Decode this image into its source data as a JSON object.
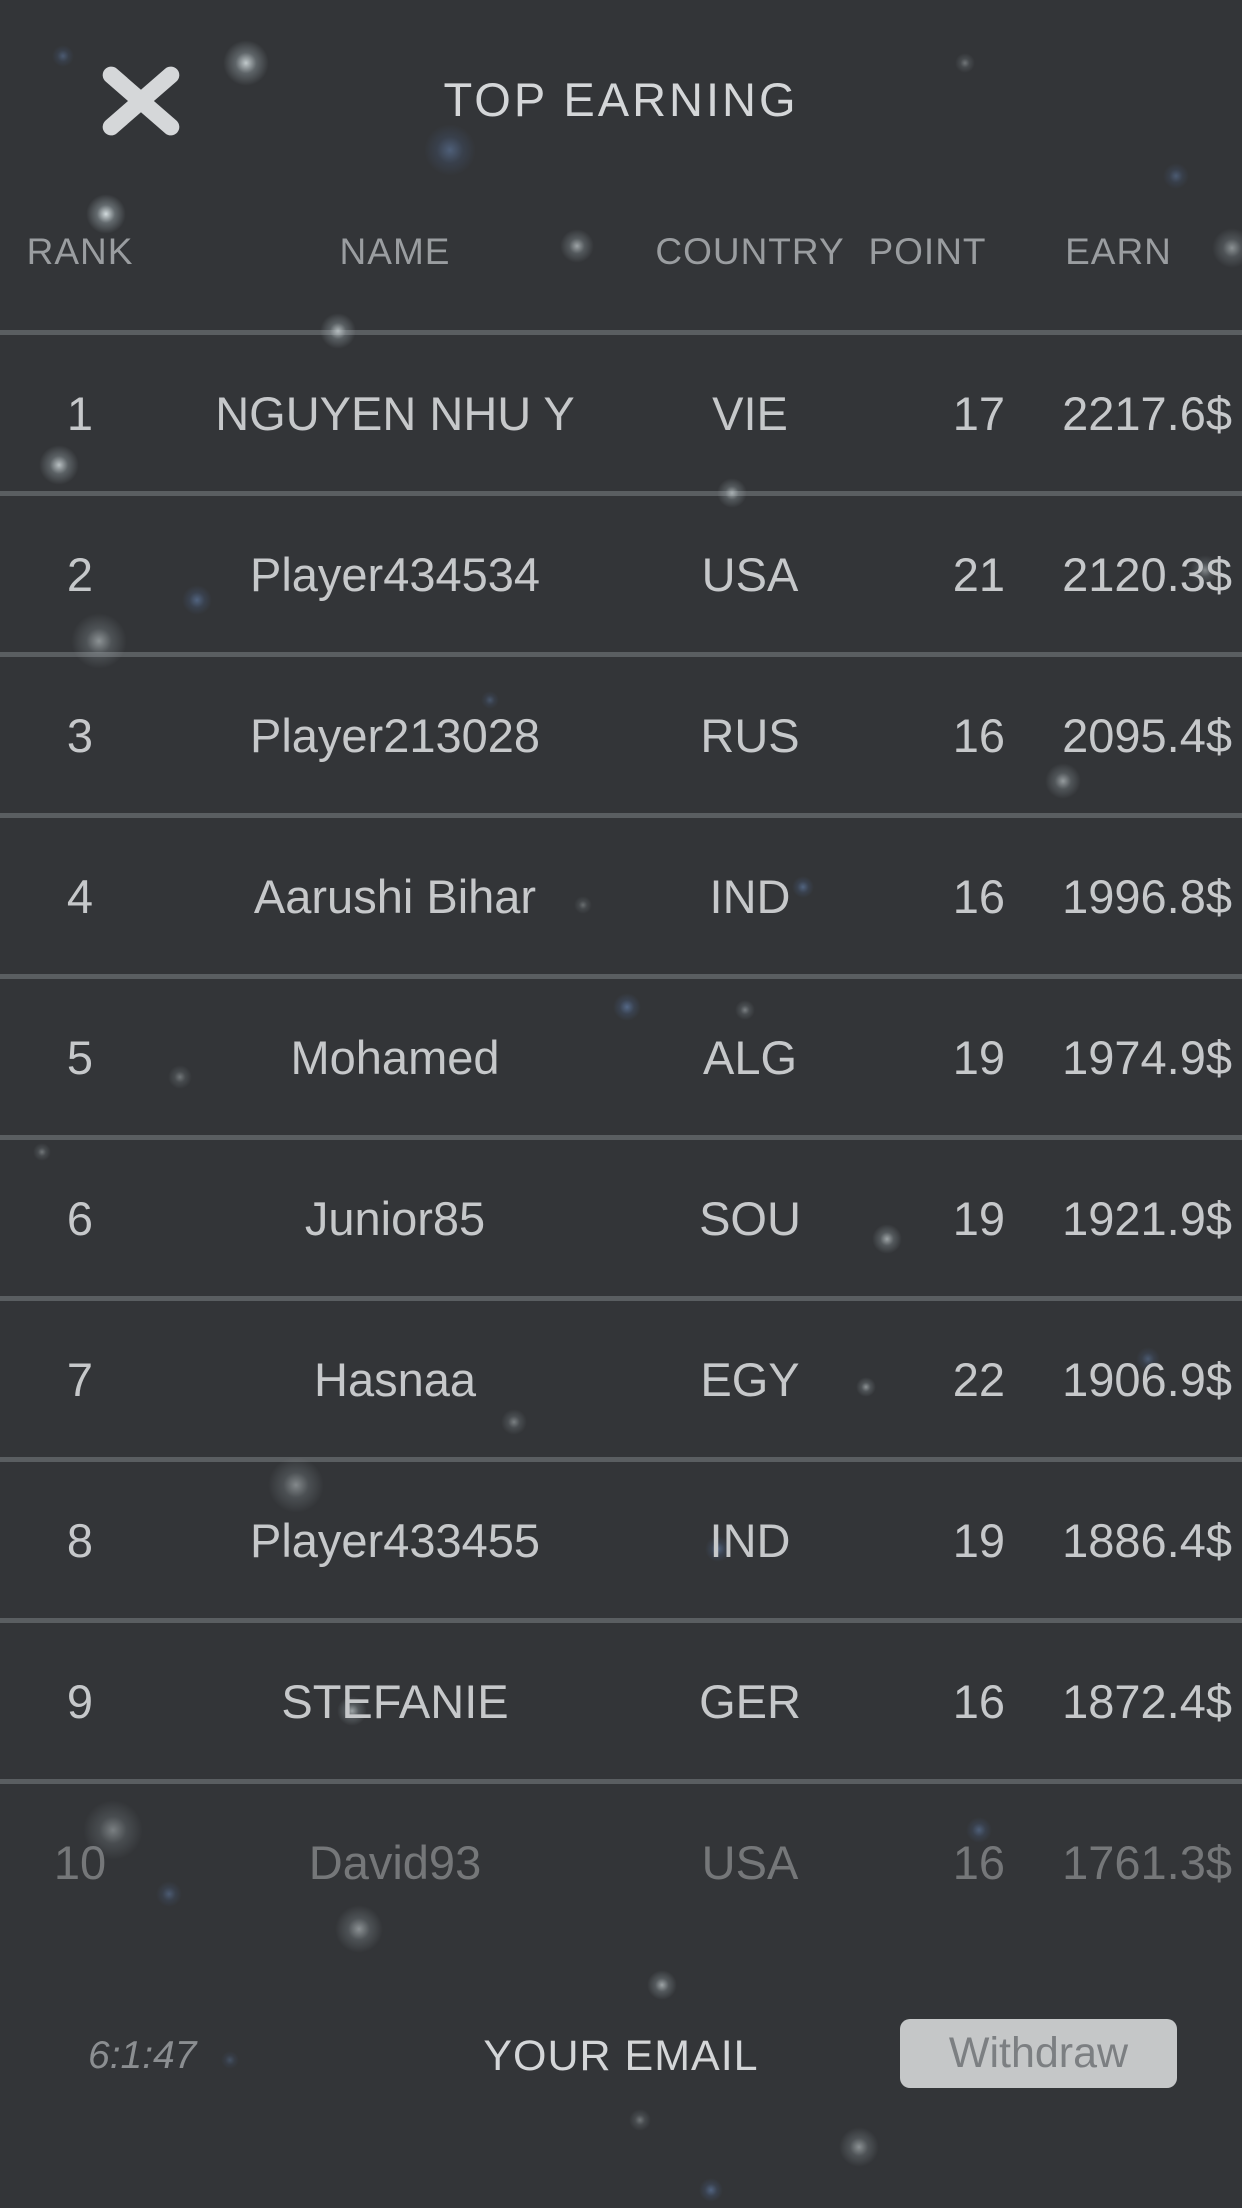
{
  "header": {
    "title": "TOP EARNING",
    "close_icon": "x-icon"
  },
  "table": {
    "columns": [
      "RANK",
      "NAME",
      "COUNTRY",
      "POINT",
      "EARN"
    ],
    "rows": [
      {
        "rank": "1",
        "name": "NGUYEN NHU Y",
        "country": "VIE",
        "point": "17",
        "earn": "2217.6$"
      },
      {
        "rank": "2",
        "name": "Player434534",
        "country": "USA",
        "point": "21",
        "earn": "2120.3$"
      },
      {
        "rank": "3",
        "name": "Player213028",
        "country": "RUS",
        "point": "16",
        "earn": "2095.4$"
      },
      {
        "rank": "4",
        "name": "Aarushi Bihar",
        "country": "IND",
        "point": "16",
        "earn": "1996.8$"
      },
      {
        "rank": "5",
        "name": "Mohamed",
        "country": "ALG",
        "point": "19",
        "earn": "1974.9$"
      },
      {
        "rank": "6",
        "name": "Junior85",
        "country": "SOU",
        "point": "19",
        "earn": "1921.9$"
      },
      {
        "rank": "7",
        "name": "Hasnaa",
        "country": "EGY",
        "point": "22",
        "earn": "1906.9$"
      },
      {
        "rank": "8",
        "name": "Player433455",
        "country": "IND",
        "point": "19",
        "earn": "1886.4$"
      },
      {
        "rank": "9",
        "name": "STEFANIE",
        "country": "GER",
        "point": "16",
        "earn": "1872.4$"
      },
      {
        "rank": "10",
        "name": "David93",
        "country": "USA",
        "point": "16",
        "earn": "1761.3$"
      }
    ]
  },
  "footer": {
    "timer": "6:1:47",
    "email_label": "YOUR EMAIL",
    "withdraw_label": "Withdraw"
  },
  "colors": {
    "background": "#333538",
    "title_text": "#d4d6d8",
    "header_text": "#9a9da0",
    "row_text": "#c6c8ca",
    "divider": "rgba(195,200,205,0.28)",
    "button_bg": "#c5c7c8",
    "button_text": "#7c7f82",
    "timer_text": "#8b8e91",
    "icon_color": "#d5d7d9"
  }
}
